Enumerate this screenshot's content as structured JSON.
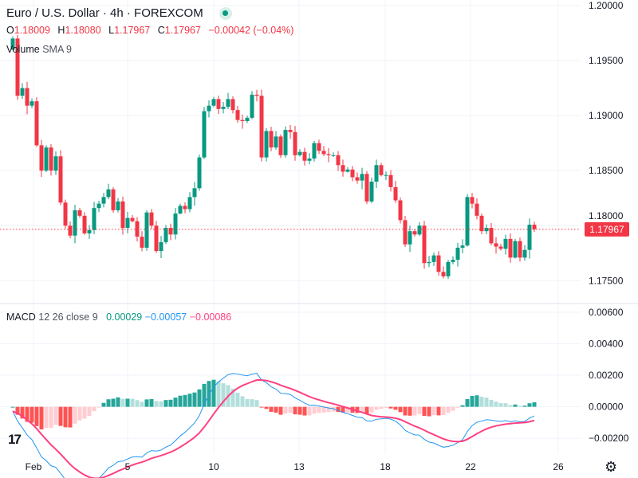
{
  "header": {
    "title": "Euro / U.S. Dollar · 4h · FOREXCOM",
    "ohlc": {
      "o_label": "O",
      "o": "1.18009",
      "h_label": "H",
      "h": "1.18080",
      "l_label": "L",
      "l": "1.17967",
      "c_label": "C",
      "c": "1.17967",
      "change": "−0.00042 (−0.04%)"
    },
    "volume_label": "Volume",
    "volume_sma": "SMA 9",
    "macd_label": "MACD",
    "macd_params": "12 26 close 9",
    "macd_values": {
      "histogram": "0.00029",
      "macd": "−0.00057",
      "signal": "−0.00086"
    }
  },
  "colors": {
    "up": "#089981",
    "down": "#f23645",
    "macd": "#2196f3",
    "signal": "#ff4081",
    "hist_up_strong": "#26a69a",
    "hist_up_weak": "#b2dfdb",
    "hist_down_strong": "#ff5252",
    "hist_down_weak": "#ffcdd2",
    "grid": "#f0f3fa"
  },
  "chart_data": [
    {
      "type": "candlestick",
      "title": "Euro / U.S. Dollar · 4h · FOREXCOM",
      "ylim": [
        1.173,
        1.2005
      ],
      "y_ticks": [
        "1.20000",
        "1.19500",
        "1.19000",
        "1.18500",
        "1.18000",
        "1.17500"
      ],
      "y_tick_values": [
        1.2,
        1.195,
        1.19,
        1.185,
        1.18,
        1.175
      ],
      "last_price": "1.17967",
      "last_price_value": 1.17967,
      "first_open": 1.196,
      "closes": [
        1.197,
        1.1918,
        1.1925,
        1.1909,
        1.1913,
        1.1873,
        1.185,
        1.1871,
        1.185,
        1.1863,
        1.1821,
        1.18,
        1.1791,
        1.1814,
        1.1809,
        1.1793,
        1.1796,
        1.1816,
        1.182,
        1.1826,
        1.1833,
        1.1814,
        1.1822,
        1.1798,
        1.1807,
        1.1804,
        1.179,
        1.178,
        1.1812,
        1.18,
        1.1777,
        1.1785,
        1.1798,
        1.1792,
        1.1811,
        1.1818,
        1.1815,
        1.1826,
        1.1834,
        1.1862,
        1.1904,
        1.1909,
        1.1915,
        1.1906,
        1.1908,
        1.1915,
        1.1905,
        1.1896,
        1.1895,
        1.1898,
        1.1919,
        1.1918,
        1.1862,
        1.1886,
        1.1871,
        1.1881,
        1.1864,
        1.1887,
        1.1885,
        1.1864,
        1.1867,
        1.1859,
        1.1861,
        1.1875,
        1.1868,
        1.1865,
        1.1864,
        1.1864,
        1.1855,
        1.1849,
        1.1851,
        1.1844,
        1.1841,
        1.1847,
        1.1822,
        1.184,
        1.1855,
        1.1846,
        1.1846,
        1.1835,
        1.1823,
        1.1805,
        1.1783,
        1.1795,
        1.1792,
        1.18,
        1.1766,
        1.1767,
        1.1773,
        1.1758,
        1.1754,
        1.1767,
        1.1769,
        1.178,
        1.1782,
        1.1826,
        1.182,
        1.1809,
        1.1795,
        1.1798,
        1.1784,
        1.1781,
        1.1779,
        1.1788,
        1.1771,
        1.1786,
        1.1771,
        1.1778,
        1.18009,
        1.17967
      ]
    },
    {
      "type": "macd",
      "params": {
        "fast": 12,
        "slow": 26,
        "signal": 9
      },
      "ylim": [
        -0.003,
        0.0065
      ],
      "y_ticks": [
        "0.00600",
        "0.00400",
        "0.00200",
        "0.00000",
        "−0.00200"
      ],
      "y_tick_values": [
        0.006,
        0.004,
        0.002,
        0,
        -0.002
      ]
    }
  ],
  "x_axis": {
    "labels": [
      "Feb",
      "5",
      "10",
      "13",
      "18",
      "22",
      "26"
    ],
    "candle_index": [
      6,
      26,
      44,
      62,
      80,
      98,
      116
    ]
  }
}
